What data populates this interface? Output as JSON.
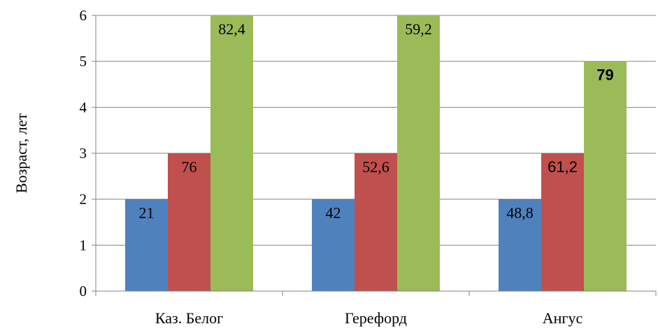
{
  "chart_data": {
    "type": "bar",
    "ylabel": "Возраст, лет",
    "xlabel": "",
    "ylim": [
      0,
      6
    ],
    "yticks": [
      "0",
      "1",
      "2",
      "3",
      "4",
      "5",
      "6"
    ],
    "grid": true,
    "legend": "none",
    "categories": [
      "Каз. Белог",
      "Герефорд",
      "Ангус"
    ],
    "series": [
      {
        "color": "#4F81BD",
        "values": [
          2,
          2,
          2
        ],
        "labels": [
          "21",
          "42",
          "48,8"
        ]
      },
      {
        "color": "#C0504D",
        "values": [
          3,
          3,
          3
        ],
        "labels": [
          "76",
          "52,6",
          "61,2"
        ]
      },
      {
        "color": "#9BBB59",
        "values": [
          6,
          6,
          5
        ],
        "labels": [
          "82,4",
          "59,2",
          "79"
        ]
      }
    ]
  }
}
